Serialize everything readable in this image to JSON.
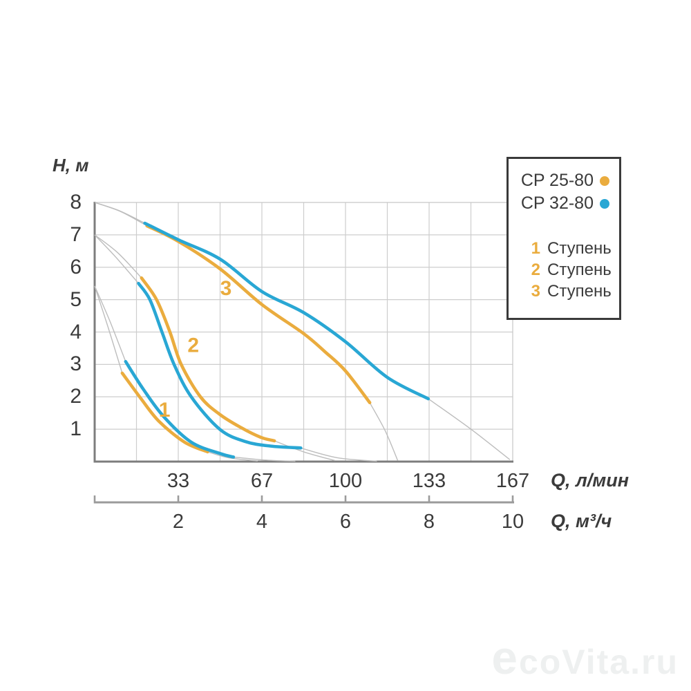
{
  "watermark": "ecoVita.ru",
  "legend": {
    "pumps": [
      {
        "name": "CP 25-80",
        "color": "#eaac3e"
      },
      {
        "name": "CP 32-80",
        "color": "#29a7d4"
      }
    ],
    "stages": [
      {
        "num": "1",
        "label": "Ступень"
      },
      {
        "num": "2",
        "label": "Ступень"
      },
      {
        "num": "3",
        "label": "Ступень"
      }
    ]
  },
  "chart_data": {
    "type": "line",
    "y_axis": {
      "label": "H, м",
      "ticks": [
        8,
        7,
        6,
        5,
        4,
        3,
        2,
        1
      ],
      "min": 0,
      "max": 8,
      "grid": true
    },
    "x_axis_primary": {
      "label": "Q, л/мин",
      "ticks": [
        33,
        67,
        100,
        133,
        167
      ],
      "min": 0,
      "max": 167
    },
    "x_axis_secondary": {
      "label": "Q, м³/ч",
      "ticks": [
        2,
        4,
        6,
        8,
        10
      ],
      "min": 0,
      "max": 10,
      "grid_step": 1
    },
    "units_note": "series points are [Q м³/ч, H м]",
    "series": [
      {
        "name": "CP 25-80",
        "stage": 1,
        "color": "#eaac3e",
        "points": [
          [
            0.66,
            2.73
          ],
          [
            1.11,
            1.94
          ],
          [
            1.54,
            1.24
          ],
          [
            2.15,
            0.6
          ],
          [
            2.7,
            0.3
          ]
        ]
      },
      {
        "name": "CP 25-80",
        "stage": 2,
        "color": "#eaac3e",
        "points": [
          [
            1.12,
            5.67
          ],
          [
            1.48,
            5.0
          ],
          [
            1.8,
            4.0
          ],
          [
            2.07,
            3.0
          ],
          [
            2.53,
            2.0
          ],
          [
            3.0,
            1.45
          ],
          [
            3.5,
            1.05
          ],
          [
            3.97,
            0.75
          ],
          [
            4.3,
            0.64
          ]
        ]
      },
      {
        "name": "CP 25-80",
        "stage": 3,
        "color": "#eaac3e",
        "points": [
          [
            1.25,
            7.28
          ],
          [
            2.0,
            6.8
          ],
          [
            3.0,
            5.95
          ],
          [
            4.0,
            4.85
          ],
          [
            5.0,
            3.95
          ],
          [
            5.5,
            3.4
          ],
          [
            6.0,
            2.8
          ],
          [
            6.58,
            1.82
          ]
        ]
      },
      {
        "name": "CP 32-80",
        "stage": 1,
        "color": "#29a7d4",
        "points": [
          [
            0.74,
            3.09
          ],
          [
            1.16,
            2.24
          ],
          [
            1.65,
            1.39
          ],
          [
            2.31,
            0.6
          ],
          [
            3.0,
            0.25
          ],
          [
            3.32,
            0.14
          ]
        ]
      },
      {
        "name": "CP 32-80",
        "stage": 2,
        "color": "#29a7d4",
        "points": [
          [
            1.05,
            5.5
          ],
          [
            1.32,
            5.0
          ],
          [
            1.61,
            4.0
          ],
          [
            1.9,
            3.0
          ],
          [
            2.31,
            2.0
          ],
          [
            2.99,
            1.0
          ],
          [
            3.6,
            0.62
          ],
          [
            4.2,
            0.48
          ],
          [
            4.93,
            0.42
          ]
        ]
      },
      {
        "name": "CP 32-80",
        "stage": 3,
        "color": "#29a7d4",
        "points": [
          [
            1.2,
            7.36
          ],
          [
            2.0,
            6.85
          ],
          [
            3.0,
            6.25
          ],
          [
            4.0,
            5.25
          ],
          [
            5.0,
            4.6
          ],
          [
            6.0,
            3.7
          ],
          [
            7.0,
            2.6
          ],
          [
            7.98,
            1.94
          ]
        ]
      }
    ],
    "gray_extensions": [
      {
        "name": "stage3-shutoff-a",
        "points": [
          [
            0,
            8.0
          ],
          [
            0.62,
            7.72
          ],
          [
            1.25,
            7.28
          ]
        ]
      },
      {
        "name": "stage3-shutoff-b",
        "points": [
          [
            0,
            8.0
          ],
          [
            0.58,
            7.75
          ],
          [
            1.2,
            7.36
          ]
        ]
      },
      {
        "name": "stage2-shutoff-a",
        "points": [
          [
            0,
            7.0
          ],
          [
            0.55,
            6.45
          ],
          [
            1.12,
            5.67
          ]
        ]
      },
      {
        "name": "stage2-shutoff-b",
        "points": [
          [
            0,
            7.0
          ],
          [
            0.5,
            6.32
          ],
          [
            1.05,
            5.5
          ]
        ]
      },
      {
        "name": "stage1-shutoff-a",
        "points": [
          [
            0,
            5.42
          ],
          [
            0.32,
            4.15
          ],
          [
            0.66,
            2.73
          ]
        ]
      },
      {
        "name": "stage1-shutoff-b",
        "points": [
          [
            0,
            5.42
          ],
          [
            0.36,
            4.35
          ],
          [
            0.74,
            3.09
          ]
        ]
      },
      {
        "name": "stage1-tail-a",
        "points": [
          [
            2.7,
            0.3
          ],
          [
            3.2,
            0.12
          ],
          [
            3.9,
            0.02
          ]
        ]
      },
      {
        "name": "stage1-tail-b",
        "points": [
          [
            3.32,
            0.14
          ],
          [
            4.05,
            0.05
          ],
          [
            4.8,
            0.01
          ]
        ]
      },
      {
        "name": "stage2-tail-a",
        "points": [
          [
            4.3,
            0.64
          ],
          [
            5.0,
            0.3
          ],
          [
            5.75,
            0.03
          ]
        ]
      },
      {
        "name": "stage2-tail-b",
        "points": [
          [
            4.93,
            0.42
          ],
          [
            5.8,
            0.12
          ],
          [
            6.75,
            0.01
          ]
        ]
      },
      {
        "name": "stage3-tail-a",
        "points": [
          [
            6.58,
            1.82
          ],
          [
            6.95,
            0.95
          ],
          [
            7.25,
            0.03
          ]
        ]
      },
      {
        "name": "stage3-tail-b",
        "points": [
          [
            7.98,
            1.94
          ],
          [
            9.0,
            1.0
          ],
          [
            9.93,
            0.06
          ]
        ]
      }
    ],
    "stage_labels": [
      {
        "text": "1",
        "q": 1.67,
        "h": 1.6
      },
      {
        "text": "2",
        "q": 2.36,
        "h": 3.6
      },
      {
        "text": "3",
        "q": 3.14,
        "h": 5.35
      }
    ],
    "colors": {
      "grid": "#cdcdcd",
      "axis_dark": "#7d7d7d",
      "axis_light": "#c6c6c6",
      "gray_curve": "#bdbdbd",
      "scale_bar": "#9b9b9b",
      "text": "#3b3b3b"
    }
  }
}
